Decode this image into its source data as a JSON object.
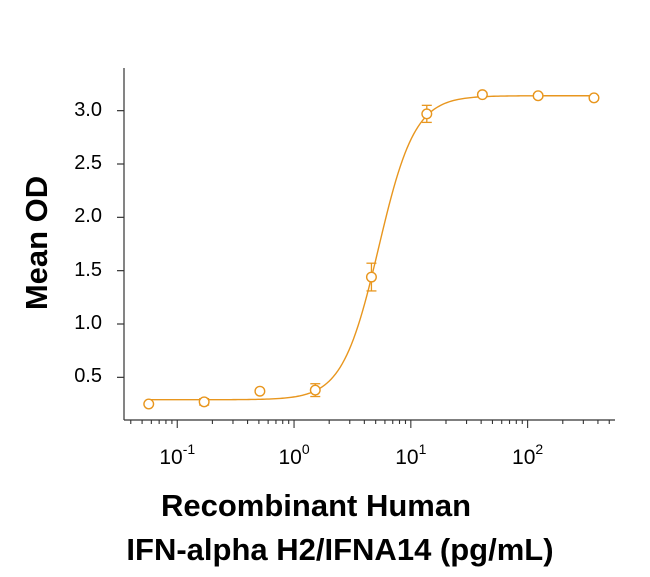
{
  "chart_data": {
    "type": "scatter",
    "title": "",
    "xlabel_line1": "Recombinant Human",
    "xlabel_line2": "IFN-alpha H2/IFNA14 (pg/mL)",
    "ylabel": "Mean OD",
    "x_scale": "log",
    "xlim": [
      0.035,
      560
    ],
    "ylim": [
      0.1,
      3.4
    ],
    "y_ticks": [
      "0.5",
      "1.0",
      "1.5",
      "2.0",
      "2.5",
      "3.0"
    ],
    "x_ticks": [
      {
        "base": "10",
        "exp": "-1",
        "value": 0.1
      },
      {
        "base": "10",
        "exp": "0",
        "value": 1
      },
      {
        "base": "10",
        "exp": "1",
        "value": 10
      },
      {
        "base": "10",
        "exp": "2",
        "value": 100
      }
    ],
    "series": [
      {
        "name": "IFN-alpha H2/IFNA14",
        "color": "#e8961e",
        "x": [
          0.057,
          0.17,
          0.51,
          1.52,
          4.6,
          13.7,
          41,
          123,
          370
        ],
        "y": [
          0.25,
          0.27,
          0.37,
          0.38,
          1.44,
          2.97,
          3.15,
          3.14,
          3.12
        ],
        "yerr": [
          0.01,
          0.03,
          0.01,
          0.06,
          0.13,
          0.08,
          0.02,
          0.02,
          0.02
        ]
      }
    ],
    "fit": {
      "bottom": 0.29,
      "top": 3.14,
      "ec50": 5.3,
      "hill": 2.8
    }
  }
}
